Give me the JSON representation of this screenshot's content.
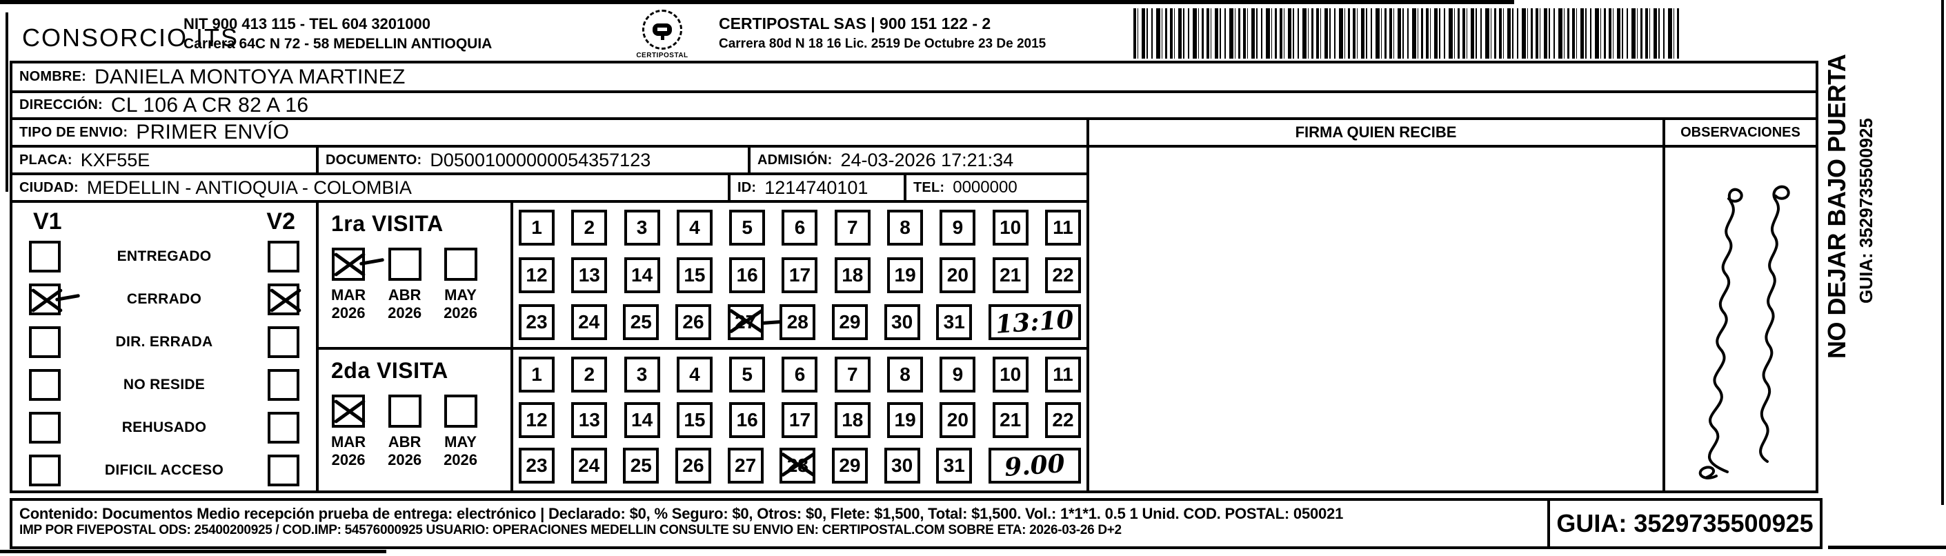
{
  "header": {
    "consorcio": "CONSORCIO ITS",
    "nit_line1": "NIT 900 413 115 - TEL 604 3201000",
    "nit_line2": "Carrera 64C N 72 - 58 MEDELLIN ANTIOQUIA",
    "logo_text": "CERTIPOSTAL",
    "certipostal_line1": "CERTIPOSTAL SAS | 900 151 122 - 2",
    "certipostal_line2": "Carrera 80d N 18 16  Lic. 2519 De Octubre 23 De 2015"
  },
  "recipient": {
    "nombre_label": "NOMBRE:",
    "nombre": "DANIELA MONTOYA MARTINEZ",
    "direccion_label": "DIRECCIÓN:",
    "direccion": "CL 106 A CR 82 A 16",
    "tipo_label": "TIPO DE ENVIO:",
    "tipo": "PRIMER ENVÍO",
    "placa_label": "PLACA:",
    "placa": "KXF55E",
    "documento_label": "DOCUMENTO:",
    "documento": "D05001000000054357123",
    "admision_label": "ADMISIÓN:",
    "admision": "24-03-2026 17:21:34",
    "ciudad_label": "CIUDAD:",
    "ciudad": "MEDELLIN - ANTIOQUIA - COLOMBIA",
    "id_label": "ID:",
    "id": "1214740101",
    "tel_label": "TEL:",
    "tel": "0000000"
  },
  "status_panel": {
    "col1": "V1",
    "col2": "V2",
    "items": [
      {
        "label": "ENTREGADO",
        "v1": false,
        "v2": false,
        "v1_tail": false
      },
      {
        "label": "CERRADO",
        "v1": true,
        "v2": true,
        "v1_tail": true
      },
      {
        "label": "DIR. ERRADA",
        "v1": false,
        "v2": false,
        "v1_tail": false
      },
      {
        "label": "NO RESIDE",
        "v1": false,
        "v2": false,
        "v1_tail": false
      },
      {
        "label": "REHUSADO",
        "v1": false,
        "v2": false,
        "v1_tail": false
      },
      {
        "label": "DIFICIL ACCESO",
        "v1": false,
        "v2": false,
        "v1_tail": false
      }
    ]
  },
  "visits": [
    {
      "title": "1ra VISITA",
      "months": [
        {
          "label": "MAR",
          "year": "2026",
          "checked": true,
          "tail": true
        },
        {
          "label": "ABR",
          "year": "2026",
          "checked": false,
          "tail": false
        },
        {
          "label": "MAY",
          "year": "2026",
          "checked": false,
          "tail": false
        }
      ],
      "day_rows": [
        [
          1,
          2,
          3,
          4,
          5,
          6,
          7,
          8,
          9,
          10,
          11
        ],
        [
          12,
          13,
          14,
          15,
          16,
          17,
          18,
          19,
          20,
          21,
          22
        ],
        [
          23,
          24,
          25,
          26,
          27,
          28,
          29,
          30,
          31
        ]
      ],
      "crossed_day": 27,
      "cross_dash": true,
      "time": "13:10"
    },
    {
      "title": "2da VISITA",
      "months": [
        {
          "label": "MAR",
          "year": "2026",
          "checked": true,
          "tail": false
        },
        {
          "label": "ABR",
          "year": "2026",
          "checked": false,
          "tail": false
        },
        {
          "label": "MAY",
          "year": "2026",
          "checked": false,
          "tail": false
        }
      ],
      "day_rows": [
        [
          1,
          2,
          3,
          4,
          5,
          6,
          7,
          8,
          9,
          10,
          11
        ],
        [
          12,
          13,
          14,
          15,
          16,
          17,
          18,
          19,
          20,
          21,
          22
        ],
        [
          23,
          24,
          25,
          26,
          27,
          28,
          29,
          30,
          31
        ]
      ],
      "crossed_day": 28,
      "cross_dash": false,
      "time": "9.00"
    }
  ],
  "firma": {
    "header": "FIRMA QUIEN RECIBE"
  },
  "observaciones": {
    "header": "OBSERVACIONES",
    "handwriting_present": true,
    "handwriting_description": "two illegible cursive lines written sideways"
  },
  "side_note": {
    "line1": "NO DEJAR BAJO PUERTA",
    "line2": "GUIA: 3529735500925"
  },
  "footer": {
    "line1": "Contenido: Documentos Medio recepción prueba de entrega: electrónico | Declarado: $0, % Seguro: $0, Otros: $0, Flete: $1,500, Total: $1,500. Vol.: 1*1*1. 0.5  1 Unid. COD. POSTAL: 050021",
    "line2": "IMP POR FIVEPOSTAL ODS: 25400200925 / COD.IMP: 54576000925 USUARIO: OPERACIONES MEDELLIN CONSULTE SU ENVIO EN: CERTIPOSTAL.COM SOBRE ETA: 2026-03-26 D+2",
    "guia": "GUIA: 3529735500925"
  }
}
